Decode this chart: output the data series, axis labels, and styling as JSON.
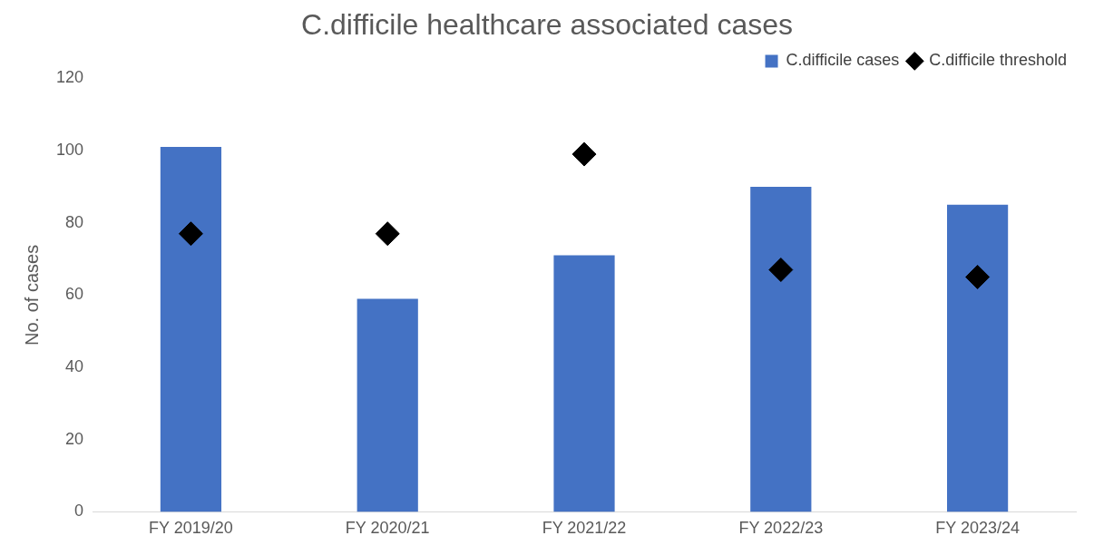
{
  "chart_data": {
    "type": "bar",
    "title": "C.difficile healthcare associated cases",
    "ylabel": "No. of cases",
    "categories": [
      "FY 2019/20",
      "FY 2020/21",
      "FY 2021/22",
      "FY 2022/23",
      "FY 2023/24"
    ],
    "series": [
      {
        "name": "C.difficile cases",
        "color": "#4472c4",
        "values": [
          101,
          59,
          71,
          90,
          85
        ]
      },
      {
        "name": "C.difficile threshold",
        "type": "scatter",
        "color": "#000000",
        "marker": "diamond",
        "values": [
          77,
          77,
          99,
          67,
          65
        ]
      }
    ],
    "ylim": [
      0,
      120
    ],
    "yticks": [
      0,
      20,
      40,
      60,
      80,
      100,
      120
    ],
    "grid": false,
    "legend": "top right"
  }
}
